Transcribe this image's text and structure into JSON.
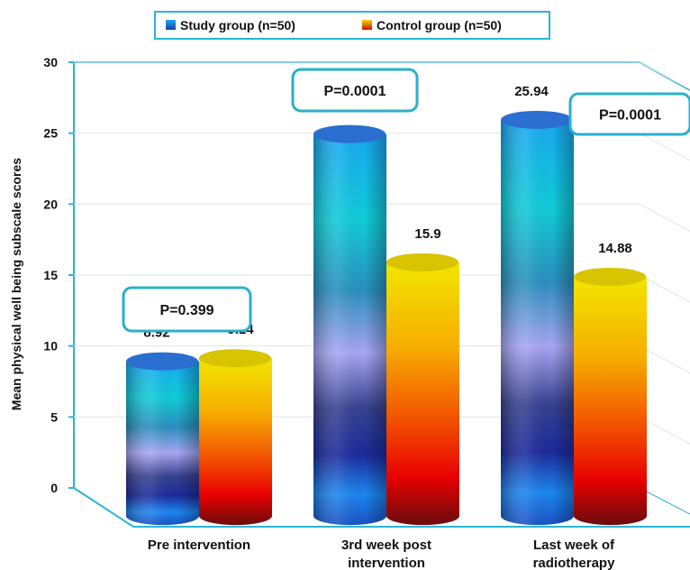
{
  "chart_data": {
    "type": "bar",
    "title": "",
    "xlabel": "",
    "ylabel": "Mean physical well being subscale scores",
    "ylim": [
      0,
      30
    ],
    "yticks": [
      "0",
      "5",
      "10",
      "15",
      "20",
      "25",
      "30"
    ],
    "categories": [
      "Pre intervention",
      "3rd week post intervention",
      "Last week of radiotherapy"
    ],
    "category_lines": [
      [
        "Pre intervention"
      ],
      [
        "3rd week post",
        "intervention"
      ],
      [
        "Last week of",
        "radiotherapy"
      ]
    ],
    "series": [
      {
        "name": "Study group (n=50)",
        "values": [
          8.92,
          24.94,
          25.94
        ],
        "labels": [
          "8.92",
          "24.94",
          "25.94"
        ]
      },
      {
        "name": "Control group (n=50)",
        "values": [
          9.14,
          15.9,
          14.88
        ],
        "labels": [
          "9.14",
          "15.9",
          "14.88"
        ]
      }
    ],
    "annotations": [
      "P=0.399",
      "P=0.0001",
      "P=0.0001"
    ],
    "legend_position": "top",
    "grid": true,
    "colors": {
      "study_top": "#2a6fd0",
      "control_top": "#d8c400",
      "frame": "#2ab4d8"
    }
  }
}
